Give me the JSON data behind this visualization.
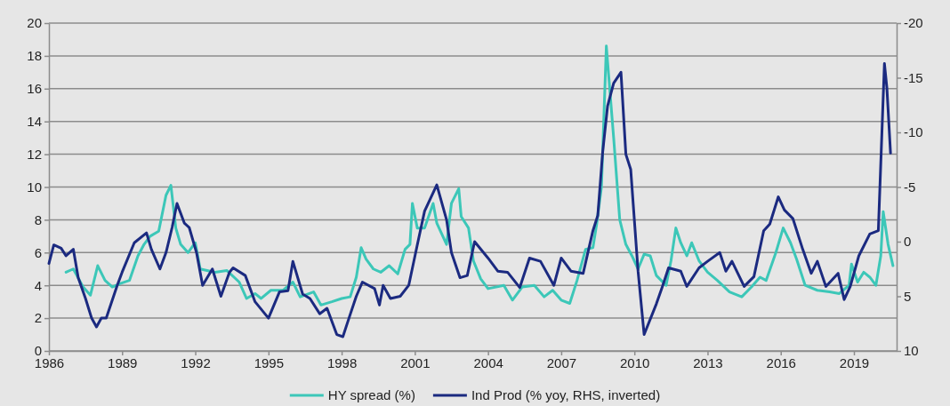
{
  "chart_data": {
    "type": "line",
    "xlim": [
      1986,
      2020.75
    ],
    "xticks": [
      1986,
      1989,
      1992,
      1995,
      1998,
      2001,
      2004,
      2007,
      2010,
      2013,
      2016,
      2019
    ],
    "ylim": [
      0,
      20
    ],
    "yticks": [
      0,
      2,
      4,
      6,
      8,
      10,
      12,
      14,
      16,
      18,
      20
    ],
    "y2lim": [
      10,
      -20
    ],
    "y2ticks": [
      10,
      5,
      0,
      -5,
      -10,
      -15,
      -20
    ],
    "grid": "y",
    "legend": "bottom",
    "marker": "none",
    "line_style": "solid",
    "series": [
      {
        "name": "HY spread (%)",
        "color": "#3cc7b8",
        "x": [
          1986.7,
          1987.0,
          1987.4,
          1987.7,
          1988.0,
          1988.3,
          1988.6,
          1988.9,
          1989.3,
          1989.65,
          1989.9,
          1990.15,
          1990.5,
          1990.8,
          1991.0,
          1991.2,
          1991.4,
          1991.7,
          1992.0,
          1992.2,
          1992.8,
          1993.3,
          1993.8,
          1994.1,
          1994.45,
          1994.7,
          1995.1,
          1995.6,
          1996.0,
          1996.3,
          1996.85,
          1997.15,
          1997.6,
          1998.0,
          1998.35,
          1998.6,
          1998.8,
          1999.0,
          1999.3,
          1999.6,
          1999.95,
          2000.3,
          2000.6,
          2000.8,
          2000.9,
          2001.1,
          2001.4,
          2001.75,
          2001.9,
          2002.3,
          2002.5,
          2002.8,
          2002.9,
          2003.2,
          2003.4,
          2003.7,
          2004.0,
          2004.65,
          2005.0,
          2005.4,
          2005.9,
          2006.3,
          2006.65,
          2007.0,
          2007.35,
          2007.65,
          2008.0,
          2008.3,
          2008.45,
          2008.65,
          2008.85,
          2009.15,
          2009.4,
          2009.65,
          2009.9,
          2010.15,
          2010.4,
          2010.65,
          2010.9,
          2011.3,
          2011.5,
          2011.7,
          2011.9,
          2012.15,
          2012.35,
          2012.65,
          2013.0,
          2013.4,
          2013.9,
          2014.4,
          2014.8,
          2015.15,
          2015.4,
          2015.8,
          2016.1,
          2016.4,
          2016.65,
          2017.0,
          2017.5,
          2018.0,
          2018.4,
          2018.8,
          2018.9,
          2019.15,
          2019.4,
          2019.65,
          2019.9,
          2020.1,
          2020.2,
          2020.4,
          2020.6
        ],
        "values": [
          4.8,
          5.0,
          3.9,
          3.4,
          5.2,
          4.3,
          3.9,
          4.1,
          4.3,
          5.8,
          6.5,
          7.0,
          7.3,
          9.5,
          10.1,
          7.5,
          6.5,
          6.0,
          6.6,
          5.0,
          4.8,
          4.9,
          4.2,
          3.2,
          3.5,
          3.2,
          3.7,
          3.7,
          4.2,
          3.3,
          3.6,
          2.8,
          3.0,
          3.2,
          3.3,
          4.5,
          6.3,
          5.6,
          5.0,
          4.8,
          5.2,
          4.7,
          6.2,
          6.5,
          9.0,
          7.5,
          7.5,
          9.0,
          7.8,
          6.5,
          9.0,
          9.9,
          8.2,
          7.5,
          5.5,
          4.4,
          3.8,
          4.0,
          3.1,
          3.9,
          4.0,
          3.3,
          3.7,
          3.1,
          2.9,
          4.3,
          6.2,
          6.3,
          7.7,
          10.0,
          18.6,
          13.0,
          8.0,
          6.5,
          5.8,
          5.0,
          5.9,
          5.8,
          4.6,
          4.0,
          5.5,
          7.5,
          6.6,
          5.8,
          6.6,
          5.5,
          4.8,
          4.3,
          3.6,
          3.3,
          3.9,
          4.5,
          4.3,
          6.0,
          7.5,
          6.6,
          5.6,
          4.0,
          3.7,
          3.6,
          3.5,
          4.0,
          5.3,
          4.2,
          4.8,
          4.5,
          4.0,
          5.8,
          8.5,
          6.5,
          5.2
        ]
      },
      {
        "name": "Ind Prod (% yoy, RHS, inverted)",
        "color": "#1b2a80",
        "axis": "y2",
        "x": [
          1986.0,
          1986.2,
          1986.5,
          1986.7,
          1987.0,
          1987.2,
          1987.5,
          1987.75,
          1987.95,
          1988.15,
          1988.35,
          1988.8,
          1989.0,
          1989.5,
          1990.0,
          1990.2,
          1990.55,
          1990.8,
          1991.05,
          1991.25,
          1991.55,
          1991.75,
          1992.05,
          1992.3,
          1992.7,
          1993.05,
          1993.4,
          1993.55,
          1994.05,
          1994.45,
          1995.0,
          1995.45,
          1995.8,
          1996.0,
          1996.4,
          1996.7,
          1997.1,
          1997.4,
          1997.8,
          1998.05,
          1998.3,
          1998.6,
          1998.85,
          1999.35,
          1999.55,
          1999.7,
          2000.0,
          2000.4,
          2000.75,
          2001.1,
          2001.4,
          2001.9,
          2002.3,
          2002.5,
          2002.85,
          2003.15,
          2003.45,
          2004.0,
          2004.4,
          2004.8,
          2005.3,
          2005.7,
          2006.15,
          2006.7,
          2007.0,
          2007.4,
          2007.9,
          2008.3,
          2008.5,
          2008.7,
          2008.9,
          2009.15,
          2009.45,
          2009.65,
          2009.85,
          2010.15,
          2010.4,
          2010.9,
          2011.15,
          2011.4,
          2011.9,
          2012.15,
          2012.65,
          2013.0,
          2013.5,
          2013.75,
          2014.0,
          2014.5,
          2014.9,
          2015.3,
          2015.55,
          2015.9,
          2016.15,
          2016.5,
          2016.9,
          2017.25,
          2017.5,
          2017.85,
          2018.35,
          2018.6,
          2018.85,
          2019.2,
          2019.65,
          2020.0,
          2020.25,
          2020.35,
          2020.5
        ],
        "values": [
          2.0,
          0.3,
          0.6,
          1.3,
          0.7,
          3.3,
          5.2,
          7.0,
          7.8,
          7.0,
          7.0,
          4.0,
          2.8,
          0.1,
          -0.8,
          0.7,
          2.5,
          1.0,
          -1.3,
          -3.5,
          -1.7,
          -1.3,
          1.0,
          4.0,
          2.5,
          5.0,
          2.8,
          2.4,
          3.1,
          5.5,
          7.0,
          4.6,
          4.5,
          1.8,
          4.8,
          5.2,
          6.6,
          6.1,
          8.5,
          8.7,
          7.0,
          5.0,
          3.7,
          4.3,
          5.8,
          4.0,
          5.2,
          5.0,
          4.0,
          0.3,
          -2.8,
          -5.2,
          -2.0,
          1.0,
          3.3,
          3.1,
          0.0,
          1.5,
          2.7,
          2.8,
          4.2,
          1.5,
          1.8,
          4.0,
          1.5,
          2.7,
          2.9,
          -1.0,
          -2.4,
          -8.2,
          -12.4,
          -14.5,
          -15.5,
          -8.0,
          -6.6,
          2.7,
          8.5,
          5.7,
          4.1,
          2.4,
          2.7,
          4.1,
          2.4,
          1.8,
          1.0,
          2.7,
          1.8,
          4.1,
          3.2,
          -1.0,
          -1.6,
          -4.1,
          -2.9,
          -2.1,
          0.7,
          2.9,
          1.8,
          4.1,
          2.9,
          5.3,
          4.1,
          1.3,
          -0.7,
          -1.0,
          -16.3,
          -14.1,
          -8.1
        ]
      }
    ]
  }
}
